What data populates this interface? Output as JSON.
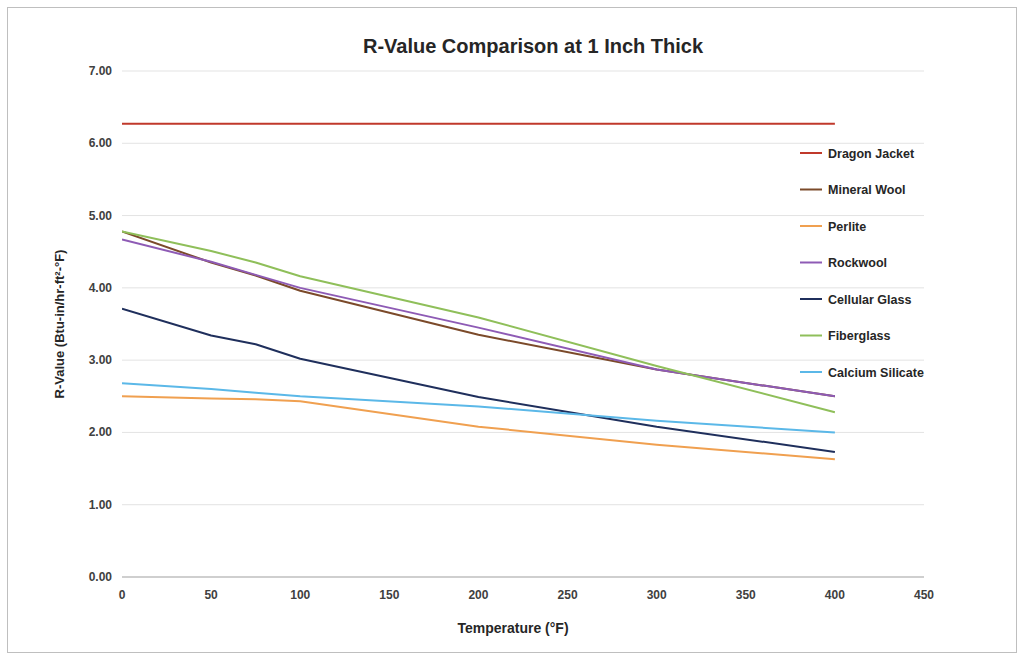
{
  "chart_data": {
    "type": "line",
    "title": "R-Value Comparison at 1 Inch Thick",
    "x_label": "Temperature (°F)",
    "y_label": "R-Value (Btu-in/hr-ft²-°F)",
    "x": [
      0,
      50,
      75,
      100,
      200,
      300,
      400
    ],
    "series": [
      {
        "name": "Dragon Jacket",
        "color": "#c0392b",
        "values": [
          6.27,
          6.27,
          6.27,
          6.27,
          6.27,
          6.27,
          6.27
        ]
      },
      {
        "name": "Mineral Wool",
        "color": "#7b4a2a",
        "values": [
          4.78,
          4.35,
          4.17,
          3.96,
          3.35,
          2.87,
          2.5
        ]
      },
      {
        "name": "Perlite",
        "color": "#f0a050",
        "values": [
          2.5,
          2.47,
          2.46,
          2.43,
          2.08,
          1.83,
          1.63
        ]
      },
      {
        "name": "Rockwool",
        "color": "#8e5bb5",
        "values": [
          4.67,
          4.36,
          4.18,
          4.0,
          3.45,
          2.87,
          2.5
        ]
      },
      {
        "name": "Cellular Glass",
        "color": "#1f2f5c",
        "values": [
          3.71,
          3.34,
          3.22,
          3.02,
          2.49,
          2.08,
          1.73
        ]
      },
      {
        "name": "Fiberglass",
        "color": "#8fbf5a",
        "values": [
          4.78,
          4.51,
          4.35,
          4.16,
          3.59,
          2.92,
          2.28
        ]
      },
      {
        "name": "Calcium Silicate",
        "color": "#5bb8e8",
        "values": [
          2.68,
          2.6,
          2.55,
          2.5,
          2.36,
          2.16,
          2.0
        ]
      }
    ],
    "xlim": [
      0,
      450
    ],
    "xticks": [
      0,
      50,
      100,
      150,
      200,
      250,
      300,
      350,
      400,
      450
    ],
    "ylim": [
      0,
      7
    ],
    "yticks": [
      {
        "value": 0,
        "label": "0.00"
      },
      {
        "value": 1,
        "label": "1.00"
      },
      {
        "value": 2,
        "label": "2.00"
      },
      {
        "value": 3,
        "label": "3.00"
      },
      {
        "value": 4,
        "label": "4.00"
      },
      {
        "value": 5,
        "label": "5.00"
      },
      {
        "value": 6,
        "label": "6.00"
      },
      {
        "value": 7,
        "label": "7.00"
      }
    ],
    "grid": true,
    "legend": "right"
  }
}
